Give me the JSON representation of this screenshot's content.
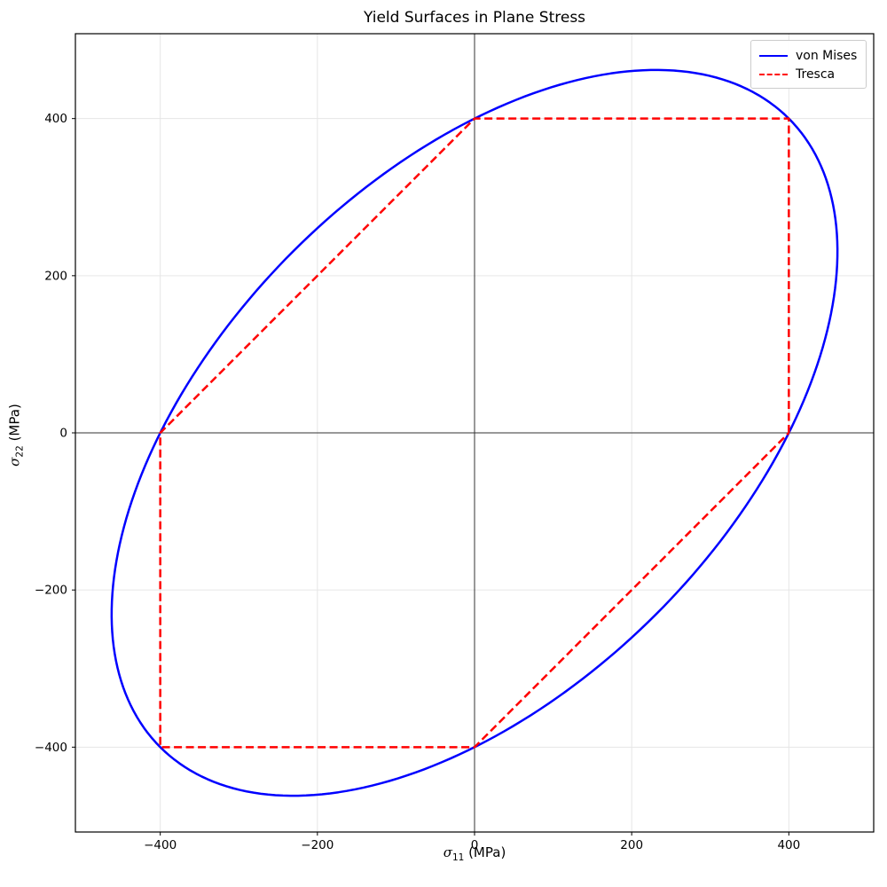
{
  "figure": {
    "title": "Yield Surfaces in Plane Stress",
    "background": "#ffffff"
  },
  "axes": {
    "xlabel": {
      "sigma": "σ",
      "subscript": "11",
      "unit": " (MPa)"
    },
    "ylabel": {
      "sigma": "σ",
      "subscript": "22",
      "unit": " (MPa)"
    }
  },
  "legend": {
    "position": "upper right",
    "items": [
      {
        "label": "von Mises",
        "color": "#0000ff",
        "linestyle": "solid"
      },
      {
        "label": "Tresca",
        "color": "#ff0000",
        "linestyle": "dashed"
      }
    ]
  },
  "chart_data": {
    "type": "line",
    "title": "Yield Surfaces in Plane Stress",
    "xlabel": "σ11 (MPa)",
    "ylabel": "σ22 (MPa)",
    "xlim": [
      -508,
      508
    ],
    "ylim": [
      -508,
      508
    ],
    "xticks": [
      -400,
      -200,
      0,
      200,
      400
    ],
    "xtick_labels": [
      "−400",
      "−200",
      "0",
      "200",
      "400"
    ],
    "yticks": [
      -400,
      -200,
      0,
      200,
      400
    ],
    "ytick_labels": [
      "−400",
      "−200",
      "0",
      "200",
      "400"
    ],
    "grid": true,
    "grid_color": "#e6e6e6",
    "zero_line_color": "#333333",
    "spine_color": "#000000",
    "legend_position": "upper right",
    "yield_strength_mpa": 400,
    "series": [
      {
        "name": "von Mises",
        "shape": "ellipse",
        "color": "#0000ff",
        "linewidth": 2.5,
        "linestyle": "solid",
        "center": [
          0,
          0
        ],
        "semi_major_axis": 565.69,
        "semi_minor_axis": 326.6,
        "rotation_deg": 45,
        "max_extent": 461.9,
        "axis_intercepts": [
          [
            400,
            0
          ],
          [
            0,
            400
          ],
          [
            -400,
            0
          ],
          [
            0,
            -400
          ]
        ]
      },
      {
        "name": "Tresca",
        "shape": "polygon",
        "color": "#ff0000",
        "linewidth": 2.5,
        "linestyle": "dashed",
        "vertices": [
          [
            400,
            0
          ],
          [
            400,
            400
          ],
          [
            0,
            400
          ],
          [
            -400,
            0
          ],
          [
            -400,
            -400
          ],
          [
            0,
            -400
          ]
        ]
      }
    ]
  }
}
